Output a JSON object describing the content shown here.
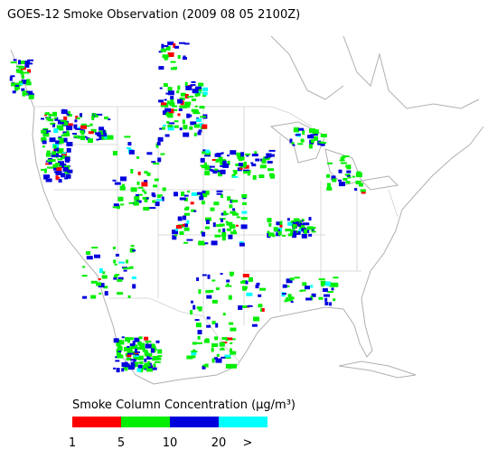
{
  "title": "GOES-12 Smoke Observation (2009 08 05  2100Z)",
  "legend": {
    "title": "Smoke Column Concentration (μg/m³)",
    "colors": [
      "#ff0000",
      "#00ee00",
      "#0000dd",
      "#00ffff"
    ],
    "labels": [
      "1",
      "5",
      "10",
      "20",
      ">"
    ]
  }
}
